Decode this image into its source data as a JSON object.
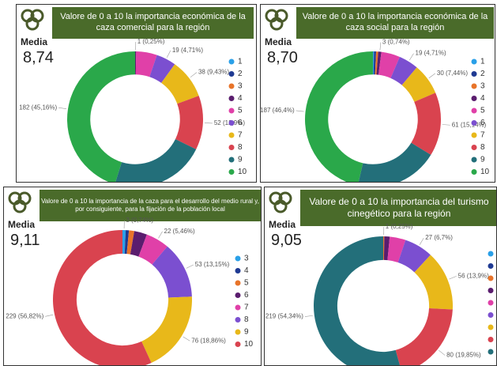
{
  "chart_data": [
    {
      "type": "donut",
      "title": "Valore de 0 a 10 la importancia económica de la caza comercial para la región",
      "media_label": "Media",
      "media_value": "8,74",
      "categories": [
        "1",
        "2",
        "3",
        "4",
        "5",
        "6",
        "7",
        "8",
        "9",
        "10"
      ],
      "colors": [
        "#2aa0e8",
        "#1f3a93",
        "#e8742a",
        "#5a1d6e",
        "#e040a8",
        "#7b4fd0",
        "#e8b81a",
        "#d9434f",
        "#236f7a",
        "#2aa84a"
      ],
      "values": [
        0,
        0,
        0,
        1,
        20,
        19,
        38,
        52,
        91,
        182
      ],
      "value_labels": [
        null,
        null,
        null,
        "1 (0,25%)",
        null,
        "19 (4,71%)",
        "38 (9,43%)",
        "52 (12,9%)",
        "91 (22,58%)",
        "182 (45,16%)"
      ]
    },
    {
      "type": "donut",
      "title": "Valore de 0 a 10 la importancia económica de la caza social para la región",
      "media_label": "Media",
      "media_value": "8,70",
      "categories": [
        "1",
        "2",
        "3",
        "4",
        "5",
        "6",
        "7",
        "8",
        "9",
        "10"
      ],
      "colors": [
        "#2aa0e8",
        "#1f3a93",
        "#e8742a",
        "#5a1d6e",
        "#e040a8",
        "#7b4fd0",
        "#e8b81a",
        "#d9434f",
        "#236f7a",
        "#2aa84a"
      ],
      "values": [
        1,
        2,
        2,
        3,
        18,
        19,
        30,
        61,
        80,
        187
      ],
      "value_labels": [
        null,
        null,
        null,
        "3 (0,74%)",
        null,
        "19 (4,71%)",
        "30 (7,44%)",
        "61 (15,14%)",
        "80 (19,85%)",
        "187 (46,4%)"
      ]
    },
    {
      "type": "donut",
      "title": "Valore de 0 a 10 la importancia de la caza para el desarrollo del medio rural y, por consiguiente, para la fijación de la población local",
      "media_label": "Media",
      "media_value": "9,11",
      "categories": [
        "3",
        "4",
        "5",
        "6",
        "7",
        "8",
        "9",
        "10"
      ],
      "colors": [
        "#2aa0e8",
        "#1f3a93",
        "#e8742a",
        "#5a1d6e",
        "#e040a8",
        "#7b4fd0",
        "#e8b81a",
        "#d9434f"
      ],
      "values": [
        3,
        3,
        5,
        12,
        22,
        53,
        76,
        229
      ],
      "value_labels": [
        "3 (0,74%)",
        null,
        null,
        null,
        "22 (5,46%)",
        "53 (13,15%)",
        "76 (18,86%)",
        "229 (56,82%)"
      ]
    },
    {
      "type": "donut",
      "title": "Valore de 0 a 10 la importancia del turismo cinegético para la región",
      "media_label": "Media",
      "media_value": "9,05",
      "categories": [
        null,
        null,
        null,
        null,
        null,
        null,
        null,
        null,
        null
      ],
      "colors": [
        "#2aa0e8",
        "#1f3a93",
        "#e8742a",
        "#5a1d6e",
        "#e040a8",
        "#7b4fd0",
        "#e8b81a",
        "#d9434f",
        "#236f7a"
      ],
      "values": [
        0,
        0,
        1,
        5,
        15,
        27,
        56,
        80,
        219
      ],
      "value_labels": [
        null,
        null,
        "1 (0,25%)",
        null,
        null,
        "27 (6,7%)",
        "56 (13,9%)",
        "80 (19,85%)",
        "219 (54,34%)"
      ]
    }
  ]
}
